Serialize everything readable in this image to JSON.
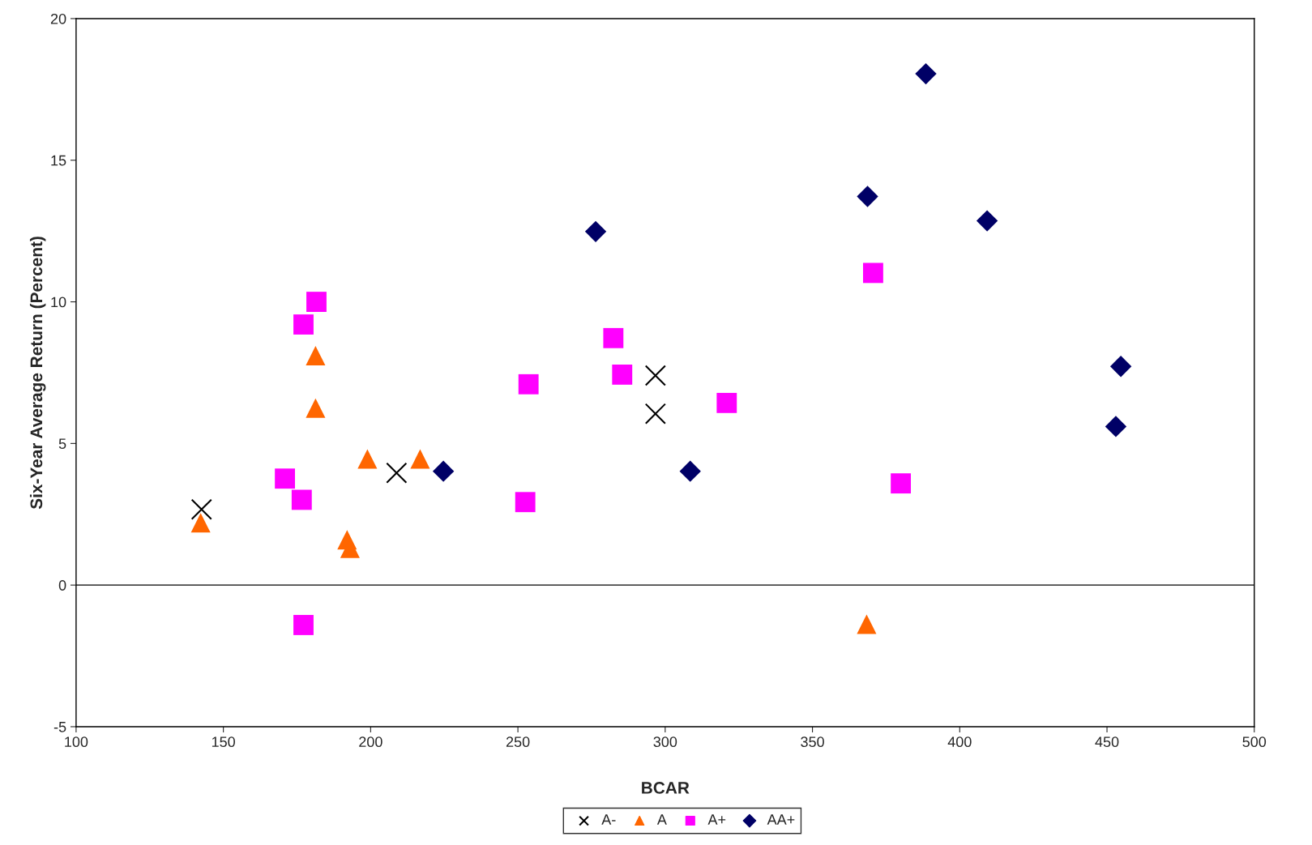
{
  "chart_data": {
    "type": "scatter",
    "xlabel": "BCAR",
    "ylabel": "Six-Year Average Return (Percent)",
    "xlim": [
      100,
      500
    ],
    "xticks": [
      100,
      150,
      200,
      250,
      300,
      350,
      400,
      450,
      500
    ],
    "ylim": [
      -5,
      20
    ],
    "yticks": [
      -5,
      0,
      5,
      10,
      15,
      20
    ],
    "grid": false,
    "ref_lines": [
      {
        "axis": "y",
        "value": 0,
        "color": "#000000"
      }
    ],
    "legend": "bottom",
    "series": [
      {
        "name": "A-",
        "color": "#000000",
        "marker": "cross",
        "x": [
          142.6,
          208.8,
          296.7,
          296.7
        ],
        "values": [
          2.67,
          3.96,
          7.4,
          6.05
        ]
      },
      {
        "name": "A",
        "color": "#ff6600",
        "marker": "triangle",
        "x": [
          142.3,
          181.3,
          181.3,
          198.9,
          216.8,
          192,
          193,
          368.4
        ],
        "values": [
          2.2,
          8.1,
          6.25,
          4.45,
          4.45,
          1.6,
          1.3,
          -1.38
        ]
      },
      {
        "name": "A+",
        "color": "#ff00ff",
        "marker": "square",
        "x": [
          181.6,
          177.2,
          170.9,
          176.6,
          177.2,
          253.6,
          252.5,
          282.4,
          285.4,
          320.9,
          370.6,
          380
        ],
        "values": [
          10.0,
          9.2,
          3.76,
          3.01,
          -1.41,
          7.09,
          2.93,
          8.72,
          7.43,
          6.43,
          11.02,
          3.59
        ]
      },
      {
        "name": "AA+",
        "color": "#000066",
        "marker": "diamond",
        "x": [
          388.5,
          368.7,
          276.4,
          409.3,
          454.7,
          453,
          224.7,
          308.5
        ],
        "values": [
          18.05,
          13.72,
          12.48,
          12.86,
          7.72,
          5.6,
          4.02,
          4.02
        ]
      }
    ]
  }
}
